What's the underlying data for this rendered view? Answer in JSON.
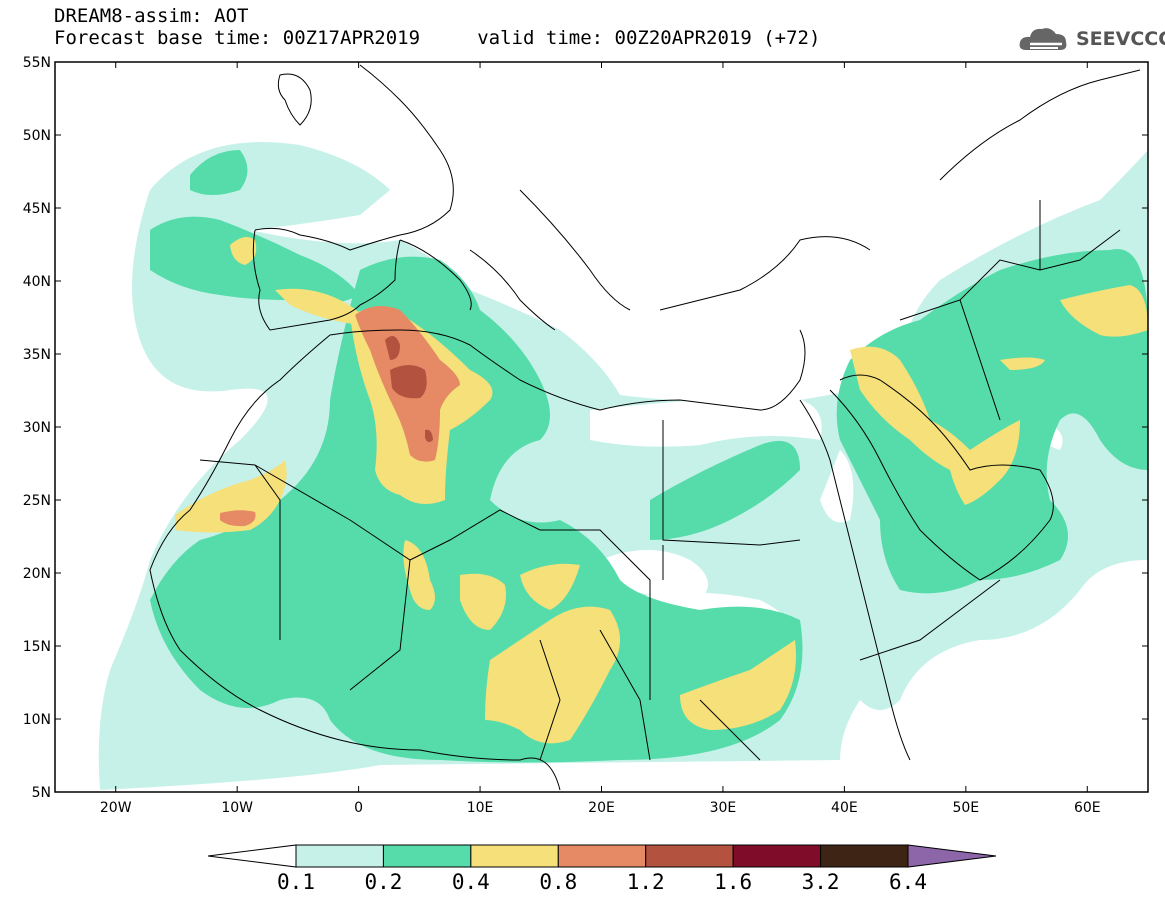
{
  "title_line1": "DREAM8-assim: AOT",
  "title_line2": "Forecast base time: 00Z17APR2019     valid time: 00Z20APR2019 (+72)",
  "logo_text": "SEEVCCC",
  "lat_labels": [
    "55N",
    "50N",
    "45N",
    "40N",
    "35N",
    "30N",
    "25N",
    "20N",
    "15N",
    "10N",
    "5N"
  ],
  "lon_labels": [
    "20W",
    "10W",
    "0",
    "10E",
    "20E",
    "30E",
    "40E",
    "50E",
    "60E"
  ],
  "lat_values": [
    55,
    50,
    45,
    40,
    35,
    30,
    25,
    20,
    15,
    10,
    5
  ],
  "lon_values": [
    -20,
    -10,
    0,
    10,
    20,
    30,
    40,
    50,
    60
  ],
  "extent": {
    "lon_min": -25,
    "lon_max": 65,
    "lat_min": 5,
    "lat_max": 55
  },
  "colorbar": {
    "labels": [
      "0.1",
      "0.2",
      "0.4",
      "0.8",
      "1.2",
      "1.6",
      "3.2",
      "6.4"
    ],
    "colors": [
      "#ffffff",
      "#c6f1e9",
      "#56dcaa",
      "#f5e07a",
      "#e58a64",
      "#b3523f",
      "#7f0d2a",
      "#3d2414",
      "#8c66a8"
    ]
  },
  "colors": {
    "very_low": "#c6f1e9",
    "low": "#56dcaa",
    "mid": "#f5e07a",
    "high": "#e58a64",
    "veryhigh": "#b3523f"
  }
}
